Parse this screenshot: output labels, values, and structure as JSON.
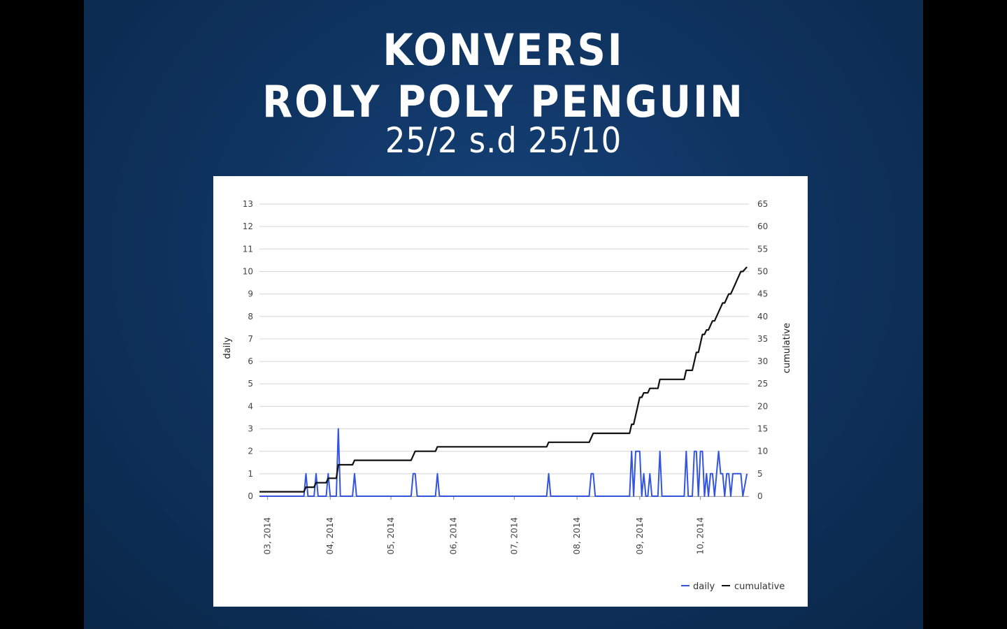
{
  "slide": {
    "title_line1": "KONVERSI",
    "title_line2": "ROLY POLY PENGUIN",
    "subtitle": "25/2 s.d 25/10"
  },
  "colors": {
    "daily": "#3355dd",
    "cumulative": "#111111",
    "grid": "#d6d6d6"
  },
  "chart_data": {
    "type": "line",
    "xlabel": "",
    "ylabel_left": "daily",
    "ylabel_right": "cumulative",
    "ylim_left": [
      0,
      13
    ],
    "ylim_right": [
      0,
      65
    ],
    "yticks_left": [
      "0",
      "1",
      "2",
      "3",
      "4",
      "5",
      "6",
      "7",
      "8",
      "9",
      "10",
      "11",
      "12",
      "13"
    ],
    "yticks_right": [
      "0",
      "5",
      "10",
      "15",
      "20",
      "25",
      "30",
      "35",
      "40",
      "45",
      "50",
      "55",
      "60",
      "65"
    ],
    "x_date_range": [
      "2014-02-25",
      "2014-10-25"
    ],
    "xticks": [
      {
        "date": "2014-03-01",
        "label": "03, 2014"
      },
      {
        "date": "2014-04-01",
        "label": "04, 2014"
      },
      {
        "date": "2014-05-01",
        "label": "05, 2014"
      },
      {
        "date": "2014-06-01",
        "label": "06, 2014"
      },
      {
        "date": "2014-07-01",
        "label": "07, 2014"
      },
      {
        "date": "2014-08-01",
        "label": "08, 2014"
      },
      {
        "date": "2014-09-01",
        "label": "09, 2014"
      },
      {
        "date": "2014-10-01",
        "label": "10, 2014"
      }
    ],
    "grid": true,
    "legend_placement": "bottom-right",
    "series": [
      {
        "name": "daily",
        "axis": "left",
        "points": [
          [
            "2014-02-25",
            0
          ],
          [
            "2014-03-19",
            0
          ],
          [
            "2014-03-20",
            1
          ],
          [
            "2014-03-21",
            0
          ],
          [
            "2014-03-24",
            0
          ],
          [
            "2014-03-25",
            1
          ],
          [
            "2014-03-26",
            0
          ],
          [
            "2014-03-30",
            0
          ],
          [
            "2014-03-31",
            1
          ],
          [
            "2014-04-01",
            0
          ],
          [
            "2014-04-04",
            0
          ],
          [
            "2014-04-05",
            3
          ],
          [
            "2014-04-06",
            0
          ],
          [
            "2014-04-12",
            0
          ],
          [
            "2014-04-13",
            1
          ],
          [
            "2014-04-14",
            0
          ],
          [
            "2014-05-11",
            0
          ],
          [
            "2014-05-12",
            1
          ],
          [
            "2014-05-13",
            1
          ],
          [
            "2014-05-14",
            0
          ],
          [
            "2014-05-23",
            0
          ],
          [
            "2014-05-24",
            1
          ],
          [
            "2014-05-25",
            0
          ],
          [
            "2014-07-17",
            0
          ],
          [
            "2014-07-18",
            1
          ],
          [
            "2014-07-19",
            0
          ],
          [
            "2014-08-07",
            0
          ],
          [
            "2014-08-08",
            1
          ],
          [
            "2014-08-09",
            1
          ],
          [
            "2014-08-10",
            0
          ],
          [
            "2014-08-27",
            0
          ],
          [
            "2014-08-28",
            2
          ],
          [
            "2014-08-29",
            0
          ],
          [
            "2014-08-30",
            2
          ],
          [
            "2014-08-31",
            2
          ],
          [
            "2014-09-01",
            2
          ],
          [
            "2014-09-02",
            0
          ],
          [
            "2014-09-03",
            1
          ],
          [
            "2014-09-04",
            0
          ],
          [
            "2014-09-05",
            0
          ],
          [
            "2014-09-06",
            1
          ],
          [
            "2014-09-07",
            0
          ],
          [
            "2014-09-10",
            0
          ],
          [
            "2014-09-11",
            2
          ],
          [
            "2014-09-12",
            0
          ],
          [
            "2014-09-23",
            0
          ],
          [
            "2014-09-24",
            2
          ],
          [
            "2014-09-25",
            0
          ],
          [
            "2014-09-27",
            0
          ],
          [
            "2014-09-28",
            2
          ],
          [
            "2014-09-29",
            2
          ],
          [
            "2014-09-30",
            0
          ],
          [
            "2014-10-01",
            2
          ],
          [
            "2014-10-02",
            2
          ],
          [
            "2014-10-03",
            0
          ],
          [
            "2014-10-04",
            1
          ],
          [
            "2014-10-05",
            0
          ],
          [
            "2014-10-06",
            1
          ],
          [
            "2014-10-07",
            1
          ],
          [
            "2014-10-08",
            0
          ],
          [
            "2014-10-10",
            2
          ],
          [
            "2014-10-11",
            1
          ],
          [
            "2014-10-12",
            1
          ],
          [
            "2014-10-13",
            0
          ],
          [
            "2014-10-14",
            1
          ],
          [
            "2014-10-15",
            1
          ],
          [
            "2014-10-16",
            0
          ],
          [
            "2014-10-17",
            1
          ],
          [
            "2014-10-18",
            1
          ],
          [
            "2014-10-19",
            1
          ],
          [
            "2014-10-20",
            1
          ],
          [
            "2014-10-21",
            1
          ],
          [
            "2014-10-22",
            0
          ],
          [
            "2014-10-24",
            1
          ]
        ]
      },
      {
        "name": "cumulative",
        "axis": "right",
        "points": [
          [
            "2014-02-25",
            1
          ],
          [
            "2014-03-19",
            1
          ],
          [
            "2014-03-20",
            2
          ],
          [
            "2014-03-24",
            2
          ],
          [
            "2014-03-25",
            3
          ],
          [
            "2014-03-30",
            3
          ],
          [
            "2014-03-31",
            4
          ],
          [
            "2014-04-04",
            4
          ],
          [
            "2014-04-05",
            7
          ],
          [
            "2014-04-12",
            7
          ],
          [
            "2014-04-13",
            8
          ],
          [
            "2014-05-11",
            8
          ],
          [
            "2014-05-12",
            9
          ],
          [
            "2014-05-13",
            10
          ],
          [
            "2014-05-23",
            10
          ],
          [
            "2014-05-24",
            11
          ],
          [
            "2014-07-17",
            11
          ],
          [
            "2014-07-18",
            12
          ],
          [
            "2014-08-07",
            12
          ],
          [
            "2014-08-08",
            13
          ],
          [
            "2014-08-09",
            14
          ],
          [
            "2014-08-27",
            14
          ],
          [
            "2014-08-28",
            16
          ],
          [
            "2014-08-29",
            16
          ],
          [
            "2014-08-30",
            18
          ],
          [
            "2014-08-31",
            20
          ],
          [
            "2014-09-01",
            22
          ],
          [
            "2014-09-02",
            22
          ],
          [
            "2014-09-03",
            23
          ],
          [
            "2014-09-05",
            23
          ],
          [
            "2014-09-06",
            24
          ],
          [
            "2014-09-10",
            24
          ],
          [
            "2014-09-11",
            26
          ],
          [
            "2014-09-23",
            26
          ],
          [
            "2014-09-24",
            28
          ],
          [
            "2014-09-27",
            28
          ],
          [
            "2014-09-28",
            30
          ],
          [
            "2014-09-29",
            32
          ],
          [
            "2014-09-30",
            32
          ],
          [
            "2014-10-01",
            34
          ],
          [
            "2014-10-02",
            36
          ],
          [
            "2014-10-03",
            36
          ],
          [
            "2014-10-04",
            37
          ],
          [
            "2014-10-05",
            37
          ],
          [
            "2014-10-06",
            38
          ],
          [
            "2014-10-07",
            39
          ],
          [
            "2014-10-08",
            39
          ],
          [
            "2014-10-10",
            41
          ],
          [
            "2014-10-11",
            42
          ],
          [
            "2014-10-12",
            43
          ],
          [
            "2014-10-13",
            43
          ],
          [
            "2014-10-14",
            44
          ],
          [
            "2014-10-15",
            45
          ],
          [
            "2014-10-16",
            45
          ],
          [
            "2014-10-17",
            46
          ],
          [
            "2014-10-18",
            47
          ],
          [
            "2014-10-19",
            48
          ],
          [
            "2014-10-20",
            49
          ],
          [
            "2014-10-21",
            50
          ],
          [
            "2014-10-22",
            50
          ],
          [
            "2014-10-24",
            51
          ]
        ]
      }
    ]
  }
}
